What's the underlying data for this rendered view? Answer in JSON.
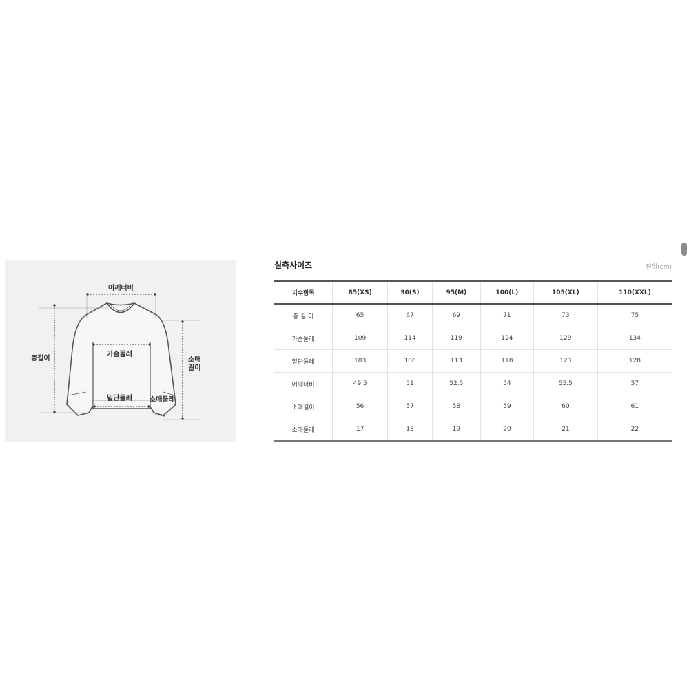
{
  "diagram": {
    "labels": {
      "shoulder": "어깨너비",
      "chest": "가슴둘레",
      "total_length": "총길이",
      "sleeve_length_1": "소매",
      "sleeve_length_2": "길이",
      "hem": "밑단둘레",
      "cuff": "소매둘레"
    }
  },
  "table": {
    "title": "실측사이즈",
    "unit": "단위(cm)",
    "headers": [
      "치수항목",
      "85(XS)",
      "90(S)",
      "95(M)",
      "100(L)",
      "105(XL)",
      "110(XXL)"
    ],
    "rows": [
      [
        "총 길 이",
        "65",
        "67",
        "69",
        "71",
        "73",
        "75"
      ],
      [
        "가슴둘레",
        "109",
        "114",
        "119",
        "124",
        "129",
        "134"
      ],
      [
        "밑단둘레",
        "103",
        "108",
        "113",
        "118",
        "123",
        "128"
      ],
      [
        "어깨너비",
        "49.5",
        "51",
        "52.5",
        "54",
        "55.5",
        "57"
      ],
      [
        "소매길이",
        "56",
        "57",
        "58",
        "59",
        "60",
        "61"
      ],
      [
        "소매둘레",
        "17",
        "18",
        "19",
        "20",
        "21",
        "22"
      ]
    ]
  }
}
